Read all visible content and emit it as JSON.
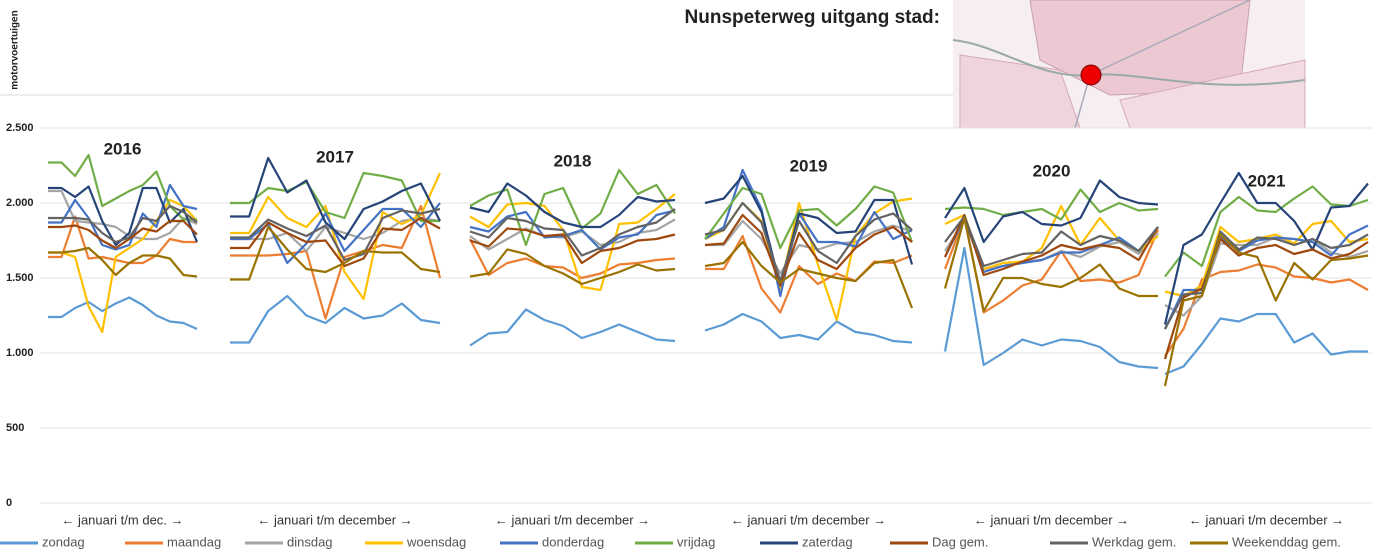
{
  "chart_data": {
    "type": "line",
    "title": "Nunspeterweg uitgang stad:",
    "y_label": "motorvoertuigen",
    "ylim": [
      0,
      2700
    ],
    "yticks": [
      0,
      500,
      {
        "value": 1000,
        "label": "1.000"
      },
      {
        "value": 1500,
        "label": "1.500"
      },
      {
        "value": 2000,
        "label": "2.000"
      },
      {
        "value": 2500,
        "label": "2.500"
      }
    ],
    "grid": true,
    "panels": [
      {
        "label": "2016",
        "xlabel": "← januari t/m dec. →"
      },
      {
        "label": "2017",
        "xlabel": "← januari t/m december →"
      },
      {
        "label": "2018",
        "xlabel": "← januari t/m december →"
      },
      {
        "label": "2019",
        "xlabel": "← januari t/m december →"
      },
      {
        "label": "2020",
        "xlabel": "← januari t/m december →"
      },
      {
        "label": "2021",
        "xlabel": "← januari t/m december →"
      }
    ],
    "legend": "bottom",
    "series": [
      {
        "name": "zondag",
        "color": "#5b9bd5",
        "values": [
          1240,
          1240,
          1300,
          1340,
          1280,
          1330,
          1370,
          1320,
          1250,
          1210,
          1200,
          1160,
          1070,
          1070,
          1280,
          1380,
          1250,
          1200,
          1300,
          1230,
          1250,
          1330,
          1220,
          1200,
          1050,
          1130,
          1140,
          1290,
          1220,
          1180,
          1100,
          1140,
          1190,
          1140,
          1090,
          1080,
          1150,
          1190,
          1260,
          1210,
          1100,
          1120,
          1090,
          1210,
          1140,
          1120,
          1080,
          1070,
          1010,
          1700,
          920,
          1000,
          1090,
          1050,
          1090,
          1080,
          1040,
          940,
          910,
          900,
          860,
          910,
          1060,
          1230,
          1210,
          1260,
          1260,
          1070,
          1130,
          990,
          1010,
          1010
        ]
      },
      {
        "name": "maandag",
        "color": "#ed7d31",
        "values": [
          1640,
          1640,
          1910,
          1630,
          1640,
          1620,
          1600,
          1600,
          1650,
          1760,
          1740,
          1740,
          1650,
          1650,
          1650,
          1660,
          1680,
          1230,
          1640,
          1680,
          1720,
          1700,
          1980,
          1500,
          1760,
          1520,
          1600,
          1630,
          1580,
          1570,
          1500,
          1530,
          1590,
          1600,
          1620,
          1630,
          1560,
          1560,
          1780,
          1430,
          1270,
          1580,
          1460,
          1530,
          1480,
          1610,
          1600,
          1650,
          1560,
          1900,
          1270,
          1350,
          1450,
          1490,
          1680,
          1480,
          1490,
          1470,
          1520,
          1820,
          980,
          1160,
          1490,
          1540,
          1550,
          1590,
          1570,
          1510,
          1500,
          1470,
          1490,
          1420
        ]
      },
      {
        "name": "dinsdag",
        "color": "#a5a5a5",
        "values": [
          2080,
          2080,
          1880,
          1870,
          1860,
          1840,
          1780,
          1760,
          1760,
          1800,
          1900,
          1860,
          1760,
          1760,
          1760,
          1800,
          1680,
          1840,
          1800,
          1760,
          1800,
          1880,
          1900,
          1880,
          1780,
          1690,
          1760,
          1830,
          1780,
          1770,
          1810,
          1720,
          1740,
          1800,
          1820,
          1890,
          1720,
          1720,
          1880,
          1760,
          1530,
          1720,
          1690,
          1730,
          1740,
          1810,
          1850,
          1810,
          1680,
          1880,
          1560,
          1580,
          1610,
          1620,
          1680,
          1640,
          1710,
          1740,
          1660,
          1800,
          1320,
          1250,
          1380,
          1730,
          1720,
          1720,
          1770,
          1720,
          1760,
          1670,
          1640,
          1680
        ]
      },
      {
        "name": "woensdag",
        "color": "#ffc000",
        "values": [
          1670,
          1670,
          1640,
          1310,
          1140,
          1640,
          1700,
          1760,
          1880,
          2020,
          1980,
          1880,
          1800,
          1800,
          2040,
          1900,
          1840,
          1980,
          1540,
          1360,
          1940,
          1860,
          1920,
          2200,
          1910,
          1840,
          1990,
          2000,
          1980,
          1820,
          1440,
          1420,
          1860,
          1870,
          1960,
          2060,
          1760,
          1820,
          2000,
          1880,
          1430,
          2000,
          1590,
          1220,
          1780,
          1930,
          2010,
          2030,
          1860,
          1920,
          1560,
          1600,
          1610,
          1700,
          1980,
          1720,
          1900,
          1750,
          1680,
          1780,
          1410,
          1380,
          1450,
          1840,
          1740,
          1760,
          1790,
          1730,
          1860,
          1880,
          1740,
          1760
        ]
      },
      {
        "name": "donderdag",
        "color": "#4472c4",
        "values": [
          1870,
          1870,
          2020,
          1900,
          1720,
          1690,
          1720,
          1930,
          1840,
          2120,
          1980,
          1960,
          1760,
          1760,
          1860,
          1600,
          1730,
          1930,
          1680,
          1820,
          1960,
          1960,
          1840,
          2000,
          1840,
          1810,
          1910,
          1940,
          1770,
          1780,
          1820,
          1690,
          1770,
          1790,
          1920,
          1950,
          1760,
          1840,
          2220,
          1960,
          1380,
          1930,
          1740,
          1740,
          1710,
          1940,
          1760,
          1820,
          1640,
          1900,
          1540,
          1580,
          1600,
          1620,
          1670,
          1670,
          1720,
          1770,
          1680,
          1840,
          1160,
          1420,
          1420,
          1770,
          1680,
          1750,
          1770,
          1760,
          1740,
          1650,
          1790,
          1850
        ]
      },
      {
        "name": "vrijdag",
        "color": "#70ad47",
        "values": [
          2270,
          2270,
          2180,
          2320,
          1980,
          2030,
          2080,
          2120,
          2210,
          1980,
          1890,
          1890,
          2000,
          2000,
          2100,
          2080,
          2140,
          1940,
          1900,
          2200,
          2180,
          2150,
          1880,
          1880,
          1980,
          2050,
          2090,
          1720,
          2060,
          2100,
          1830,
          1930,
          2220,
          2060,
          2120,
          1930,
          1760,
          1930,
          2100,
          2060,
          1700,
          1950,
          1960,
          1850,
          1960,
          2110,
          2070,
          1740,
          1960,
          1970,
          1960,
          1920,
          1940,
          1960,
          1890,
          2090,
          1940,
          2000,
          1950,
          1960,
          1510,
          1670,
          1580,
          1940,
          2040,
          1950,
          1940,
          2030,
          2110,
          1990,
          1980,
          2020
        ]
      },
      {
        "name": "zaterdag",
        "color": "#264478",
        "values": [
          2100,
          2100,
          2040,
          2110,
          1880,
          1720,
          1800,
          2100,
          2100,
          1870,
          1960,
          1740,
          1910,
          1910,
          2300,
          2070,
          2150,
          1870,
          1760,
          1960,
          2010,
          2080,
          2130,
          1880,
          1970,
          1940,
          2130,
          2050,
          1940,
          1870,
          1840,
          1840,
          1920,
          2040,
          2010,
          2020,
          2000,
          2030,
          2180,
          1940,
          1450,
          1930,
          1900,
          1800,
          1810,
          2020,
          2020,
          1590,
          1900,
          2100,
          1740,
          1910,
          1940,
          1860,
          1850,
          1900,
          2150,
          2040,
          2000,
          1990,
          1190,
          1720,
          1790,
          2000,
          2200,
          2000,
          2000,
          1880,
          1690,
          1970,
          1980,
          2130
        ]
      },
      {
        "name": "Dag gem.",
        "color": "#9e480e",
        "values": [
          1840,
          1840,
          1850,
          1820,
          1750,
          1700,
          1760,
          1830,
          1810,
          1880,
          1880,
          1790,
          1700,
          1700,
          1870,
          1800,
          1740,
          1750,
          1580,
          1630,
          1830,
          1820,
          1900,
          1830,
          1750,
          1710,
          1830,
          1820,
          1780,
          1790,
          1600,
          1680,
          1700,
          1750,
          1760,
          1790,
          1720,
          1730,
          1920,
          1800,
          1450,
          1800,
          1620,
          1560,
          1700,
          1790,
          1840,
          1740,
          1640,
          1920,
          1520,
          1560,
          1610,
          1650,
          1720,
          1690,
          1720,
          1700,
          1620,
          1840,
          960,
          1370,
          1430,
          1760,
          1650,
          1700,
          1720,
          1660,
          1690,
          1630,
          1660,
          1740
        ]
      },
      {
        "name": "Werkdag gem.",
        "color": "#636363",
        "values": [
          1900,
          1900,
          1900,
          1890,
          1800,
          1740,
          1770,
          1900,
          1880,
          1980,
          1940,
          1870,
          1770,
          1770,
          1890,
          1830,
          1780,
          1850,
          1620,
          1660,
          1900,
          1950,
          1930,
          1960,
          1810,
          1770,
          1900,
          1880,
          1830,
          1820,
          1650,
          1700,
          1790,
          1840,
          1870,
          1960,
          1790,
          1820,
          2000,
          1870,
          1480,
          1880,
          1680,
          1600,
          1780,
          1890,
          1930,
          1820,
          1740,
          1910,
          1580,
          1620,
          1660,
          1670,
          1810,
          1720,
          1780,
          1750,
          1680,
          1840,
          1160,
          1390,
          1400,
          1810,
          1690,
          1770,
          1760,
          1720,
          1760,
          1700,
          1720,
          1790
        ]
      },
      {
        "name": "Weekenddag gem.",
        "color": "#997300",
        "values": [
          1670,
          1670,
          1680,
          1700,
          1620,
          1520,
          1600,
          1650,
          1650,
          1630,
          1520,
          1510,
          1490,
          1490,
          1840,
          1690,
          1560,
          1540,
          1600,
          1680,
          1670,
          1670,
          1560,
          1540,
          1510,
          1530,
          1690,
          1660,
          1580,
          1530,
          1460,
          1500,
          1540,
          1590,
          1550,
          1560,
          1580,
          1600,
          1740,
          1580,
          1470,
          1560,
          1530,
          1500,
          1480,
          1600,
          1620,
          1300,
          1430,
          1900,
          1280,
          1500,
          1500,
          1460,
          1440,
          1500,
          1590,
          1430,
          1380,
          1380,
          780,
          1350,
          1380,
          1790,
          1670,
          1640,
          1350,
          1600,
          1490,
          1620,
          1630,
          1650
        ]
      }
    ]
  }
}
